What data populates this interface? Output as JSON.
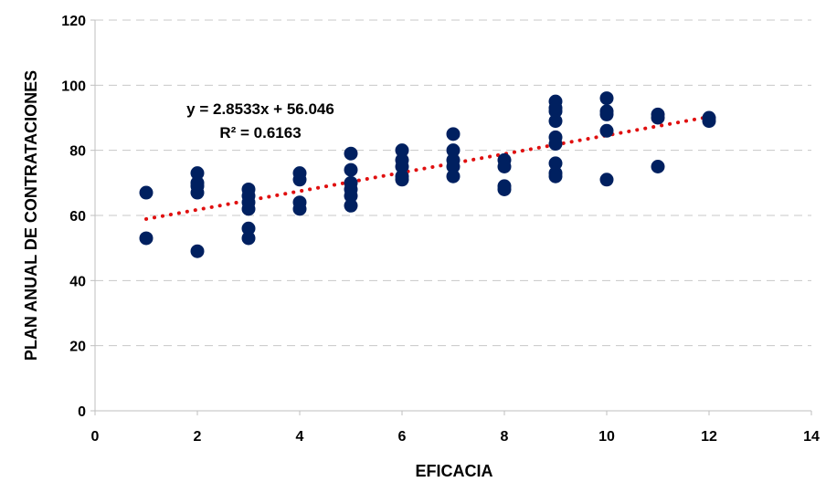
{
  "chart_data": {
    "type": "scatter",
    "title": "",
    "xlabel": "EFICACIA",
    "ylabel": "PLAN ANUAL DE CONTRATACIONES",
    "xlim": [
      0,
      14
    ],
    "ylim": [
      0,
      120
    ],
    "x_ticks": [
      0,
      2,
      4,
      6,
      8,
      10,
      12,
      14
    ],
    "y_ticks": [
      0,
      20,
      40,
      60,
      80,
      100,
      120
    ],
    "x_tick_labels": [
      "0",
      "2",
      "4",
      "6",
      "8",
      "10",
      "12",
      "14"
    ],
    "y_tick_labels": [
      "0",
      "20",
      "40",
      "60",
      "80",
      "100",
      "120"
    ],
    "grid": "horizontal-dashed",
    "legend": "none",
    "points": [
      [
        1,
        67
      ],
      [
        1,
        53
      ],
      [
        2,
        73
      ],
      [
        2,
        70
      ],
      [
        2,
        69
      ],
      [
        2,
        67
      ],
      [
        2,
        49
      ],
      [
        3,
        68
      ],
      [
        3,
        66
      ],
      [
        3,
        64
      ],
      [
        3,
        62
      ],
      [
        3,
        56
      ],
      [
        3,
        53
      ],
      [
        4,
        73
      ],
      [
        4,
        71
      ],
      [
        4,
        64
      ],
      [
        4,
        62
      ],
      [
        5,
        79
      ],
      [
        5,
        74
      ],
      [
        5,
        70
      ],
      [
        5,
        68
      ],
      [
        5,
        66
      ],
      [
        5,
        63
      ],
      [
        6,
        80
      ],
      [
        6,
        77
      ],
      [
        6,
        75
      ],
      [
        6,
        72
      ],
      [
        6,
        71
      ],
      [
        7,
        85
      ],
      [
        7,
        80
      ],
      [
        7,
        77
      ],
      [
        7,
        75
      ],
      [
        7,
        72
      ],
      [
        8,
        77
      ],
      [
        8,
        75
      ],
      [
        8,
        69
      ],
      [
        8,
        68
      ],
      [
        9,
        95
      ],
      [
        9,
        93
      ],
      [
        9,
        92
      ],
      [
        9,
        89
      ],
      [
        9,
        84
      ],
      [
        9,
        82
      ],
      [
        9,
        76
      ],
      [
        9,
        73
      ],
      [
        9,
        72
      ],
      [
        10,
        96
      ],
      [
        10,
        92
      ],
      [
        10,
        91
      ],
      [
        10,
        86
      ],
      [
        10,
        71
      ],
      [
        11,
        91
      ],
      [
        11,
        90
      ],
      [
        11,
        75
      ],
      [
        12,
        90
      ],
      [
        12,
        89
      ]
    ],
    "trendline": {
      "type": "linear",
      "slope": 2.8533,
      "intercept": 56.046,
      "x_range": [
        1,
        12
      ]
    },
    "annotations": [
      "y = 2.8533x + 56.046",
      "R² = 0.6163"
    ],
    "colors": {
      "points": "#002060",
      "trendline": "#e01010",
      "grid": "#c8c8c8",
      "axis": "#bfbfbf"
    }
  }
}
